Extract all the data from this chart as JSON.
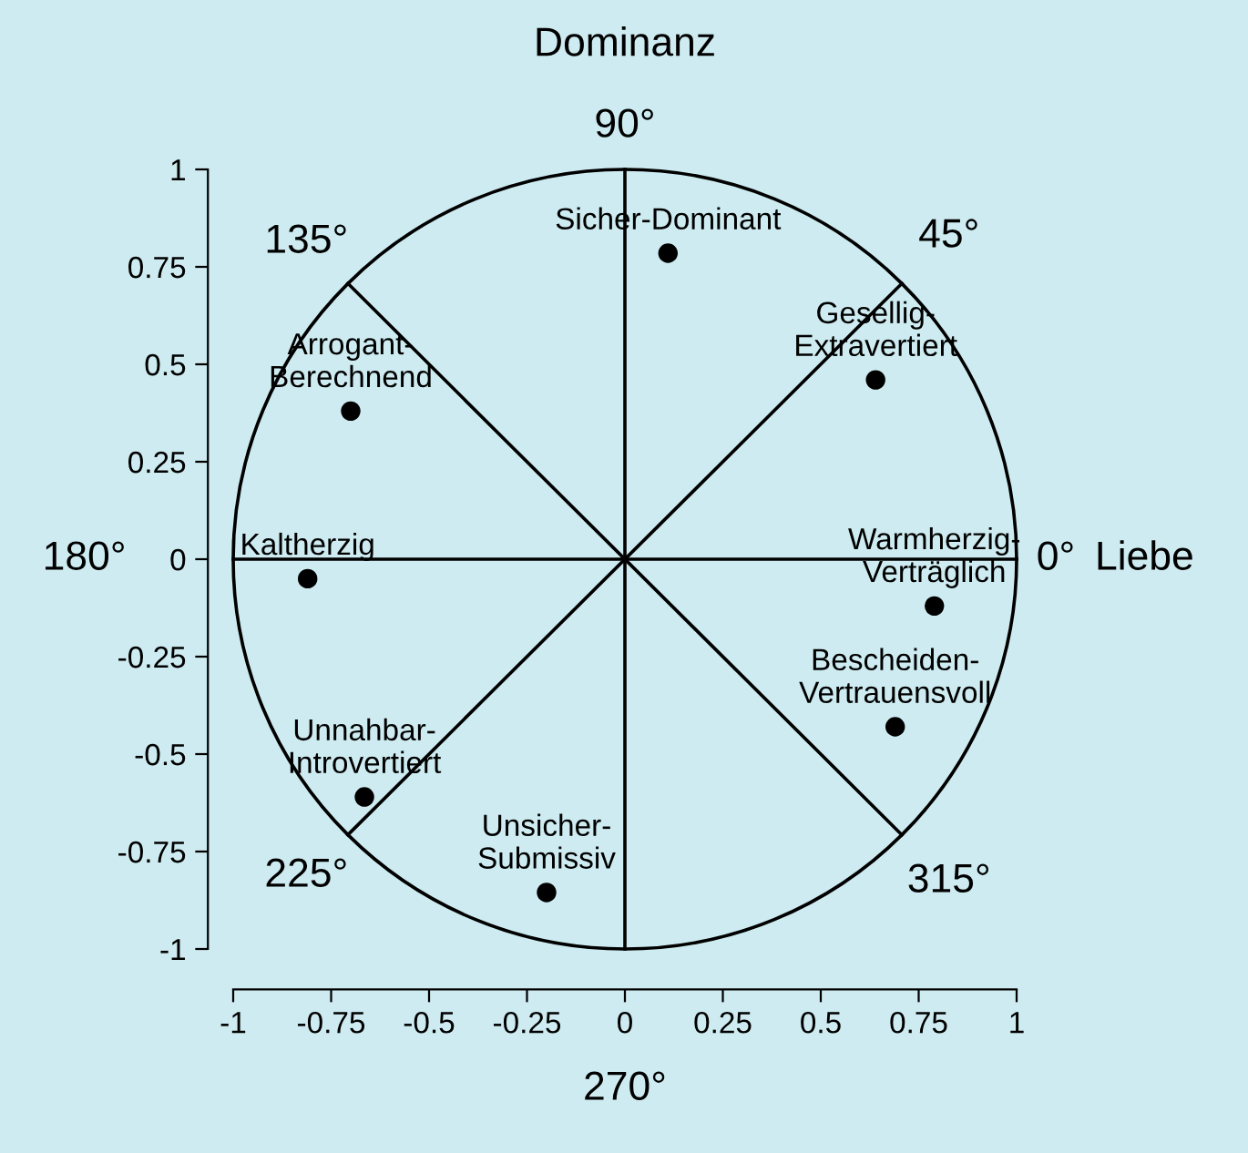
{
  "chart_data": {
    "type": "scatter",
    "xlabel": "Liebe",
    "ylabel": "Dominanz",
    "xlim": [
      -1,
      1
    ],
    "ylim": [
      -1,
      1
    ],
    "xticks": [
      -1,
      -0.75,
      -0.5,
      -0.25,
      0,
      0.25,
      0.5,
      0.75,
      1
    ],
    "yticks": [
      -1,
      -0.75,
      -0.5,
      -0.25,
      0,
      0.25,
      0.5,
      0.75,
      1
    ],
    "marker": "circle",
    "series": [
      {
        "color": "#000000",
        "x": [
          0.11,
          0.64,
          0.79,
          0.69,
          -0.2,
          -0.665,
          -0.81,
          -0.7
        ],
        "values": [
          0.785,
          0.46,
          -0.12,
          -0.43,
          -0.855,
          -0.61,
          -0.05,
          0.38
        ]
      }
    ],
    "annotations": [
      {
        "text": "Sicher-Dominant",
        "x": 0.11,
        "y": 0.785
      },
      {
        "text": "Gesellig-\nExtravertiert",
        "x": 0.64,
        "y": 0.46
      },
      {
        "text": "Warmherzig-\nVerträglich",
        "x": 0.79,
        "y": -0.12
      },
      {
        "text": "Bescheiden-\nVertrauensvoll",
        "x": 0.69,
        "y": -0.43
      },
      {
        "text": "Unsicher-\nSubmissiv",
        "x": -0.2,
        "y": -0.855
      },
      {
        "text": "Unnahbar-\nIntrovertiert",
        "x": -0.665,
        "y": -0.61
      },
      {
        "text": "Kaltherzig",
        "x": -0.81,
        "y": -0.05
      },
      {
        "text": "Arrogant-\nBerechnend",
        "x": -0.7,
        "y": 0.38
      },
      "0°",
      "45°",
      "90°",
      "135°",
      "180°",
      "225°",
      "270°",
      "315°"
    ]
  }
}
